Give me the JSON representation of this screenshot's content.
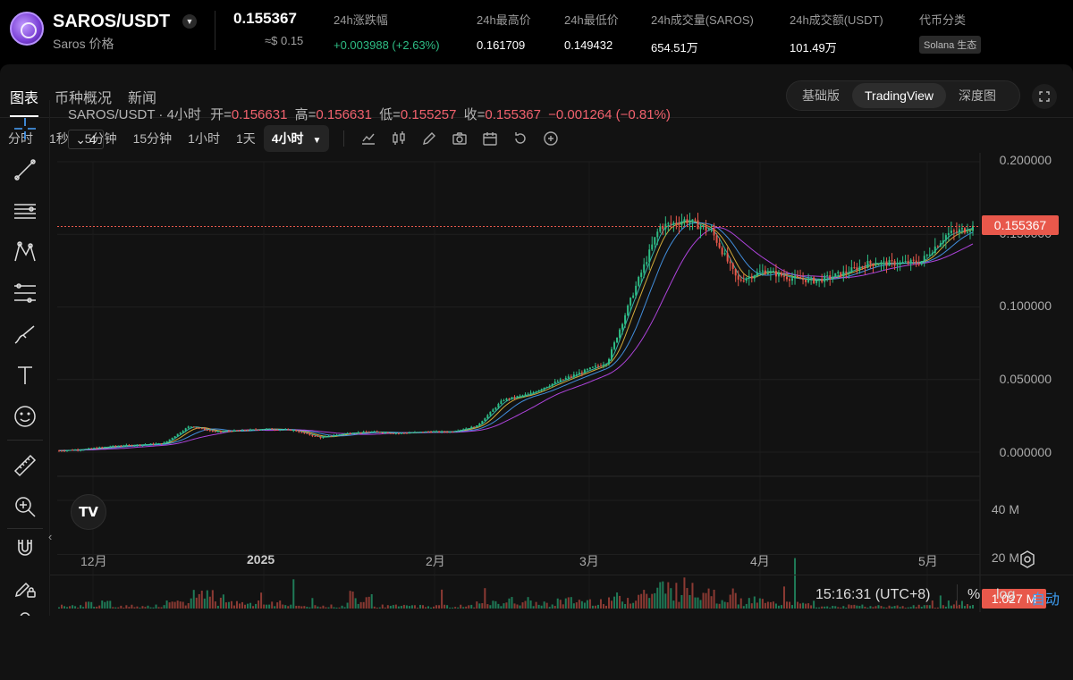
{
  "header": {
    "pair": "SAROS/USDT",
    "pair_caret": "▼",
    "pair_subtitle": "Saros 价格",
    "price": "0.155367",
    "price_usd": "≈$ 0.15",
    "stats": [
      {
        "label": "24h涨跌幅",
        "value": "+0.003988 (+2.63%)",
        "up": true
      },
      {
        "label": "24h最高价",
        "value": "0.161709"
      },
      {
        "label": "24h最低价",
        "value": "0.149432"
      },
      {
        "label": "24h成交量(SAROS)",
        "value": "654.51万"
      },
      {
        "label": "24h成交额(USDT)",
        "value": "101.49万"
      },
      {
        "label": "代币分类",
        "tag": "Solana 生态"
      }
    ]
  },
  "tabs": [
    "图表",
    "币种概况",
    "新闻"
  ],
  "view_switch": [
    "基础版",
    "TradingView",
    "深度图"
  ],
  "timeframes": [
    "分时",
    "1秒",
    "5分钟",
    "15分钟",
    "1小时",
    "1天",
    "4小时"
  ],
  "timeframe_active_caret": "▼",
  "legend": {
    "title": "SAROS/USDT · 4小时",
    "open_label": "开=",
    "open": "0.156631",
    "high_label": "高=",
    "high": "0.156631",
    "low_label": "低=",
    "low": "0.155257",
    "close_label": "收=",
    "close": "0.155367",
    "change": "−0.001264 (−0.81%)",
    "indicator_count": "4",
    "collapse_glyph": "⌄"
  },
  "price_axis": [
    "0.200000",
    "0.150000",
    "0.100000",
    "0.050000",
    "0.000000"
  ],
  "current_price_tag": "0.155367",
  "volume_axis": [
    "40 M",
    "20 M"
  ],
  "current_volume_tag": "1.027 M",
  "x_axis": [
    "12月",
    "2025",
    "2月",
    "3月",
    "4月",
    "5月"
  ],
  "tv_logo": "TV",
  "bottom": {
    "time": "15:16:31 (UTC+8)",
    "percent": "%",
    "log": "log",
    "auto": "自动"
  },
  "chart_data": {
    "type": "line",
    "title": "SAROS/USDT · 4小时",
    "x": [
      "2024-11-20",
      "2024-11-28",
      "2024-12-05",
      "2024-12-12",
      "2024-12-19",
      "2024-12-26",
      "2025-01-01",
      "2025-01-08",
      "2025-01-15",
      "2025-01-22",
      "2025-01-29",
      "2025-02-05",
      "2025-02-12",
      "2025-02-19",
      "2025-02-26",
      "2025-03-05",
      "2025-03-12",
      "2025-03-16",
      "2025-03-20",
      "2025-03-24",
      "2025-03-28",
      "2025-04-01",
      "2025-04-04",
      "2025-04-06",
      "2025-04-09",
      "2025-04-12",
      "2025-04-15",
      "2025-04-18",
      "2025-04-21",
      "2025-04-25",
      "2025-04-29",
      "2025-05-03",
      "2025-05-07",
      "2025-05-11",
      "2025-05-14",
      "2025-05-17"
    ],
    "series": [
      {
        "values": [
          0.001,
          0.002,
          0.004,
          0.005,
          0.006,
          0.018,
          0.014,
          0.015,
          0.016,
          0.015,
          0.01,
          0.013,
          0.014,
          0.013,
          0.014,
          0.014,
          0.018,
          0.036,
          0.04,
          0.048,
          0.055,
          0.062,
          0.11,
          0.155,
          0.16,
          0.152,
          0.118,
          0.125,
          0.12,
          0.118,
          0.123,
          0.13,
          0.13,
          0.131,
          0.15,
          0.155
        ]
      }
    ],
    "volume": [
      1,
      2,
      1,
      1,
      2,
      6,
      3,
      2,
      2,
      1,
      1,
      5,
      1,
      1,
      1,
      1,
      2,
      3,
      2,
      3,
      3,
      4,
      6,
      8,
      9,
      5,
      3,
      2,
      2,
      1,
      1,
      1,
      1,
      1,
      2,
      1.027
    ],
    "ylim": [
      0,
      0.2
    ],
    "volume_ylim": [
      0,
      40
    ],
    "last_price": 0.155367
  }
}
